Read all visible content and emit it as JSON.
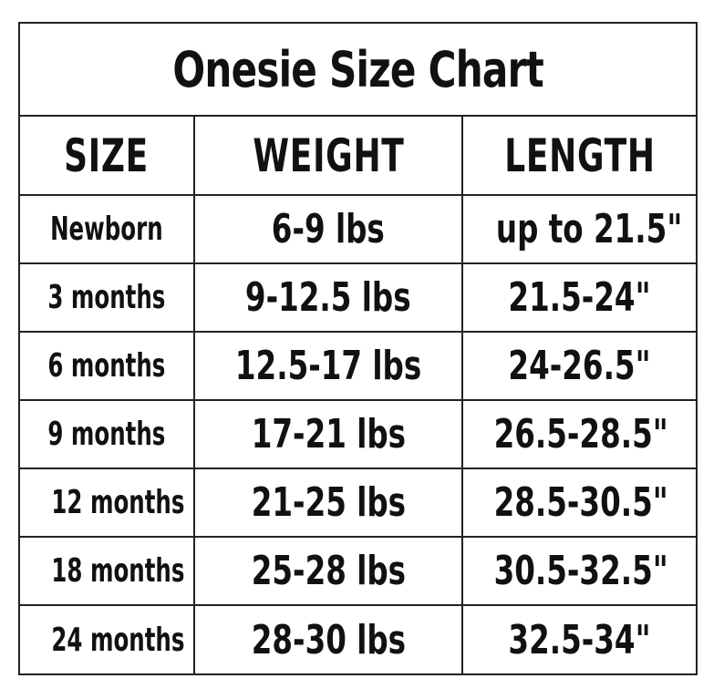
{
  "title": "Onesie Size Chart",
  "headers": {
    "size": "SIZE",
    "weight": "WEIGHT",
    "length": "LENGTH"
  },
  "rows": [
    {
      "size": "Newborn",
      "weight": "6-9 lbs",
      "length": "up to 21.5\""
    },
    {
      "size": "3 months",
      "weight": "9-12.5 lbs",
      "length": "21.5-24\""
    },
    {
      "size": "6 months",
      "weight": "12.5-17 lbs",
      "length": "24-26.5\""
    },
    {
      "size": "9 months",
      "weight": "17-21 lbs",
      "length": "26.5-28.5\""
    },
    {
      "size": "12 months",
      "weight": "21-25 lbs",
      "length": "28.5-30.5\""
    },
    {
      "size": "18 months",
      "weight": "25-28 lbs",
      "length": "30.5-32.5\""
    },
    {
      "size": "24 months",
      "weight": "28-30 lbs",
      "length": "32.5-34\""
    }
  ]
}
